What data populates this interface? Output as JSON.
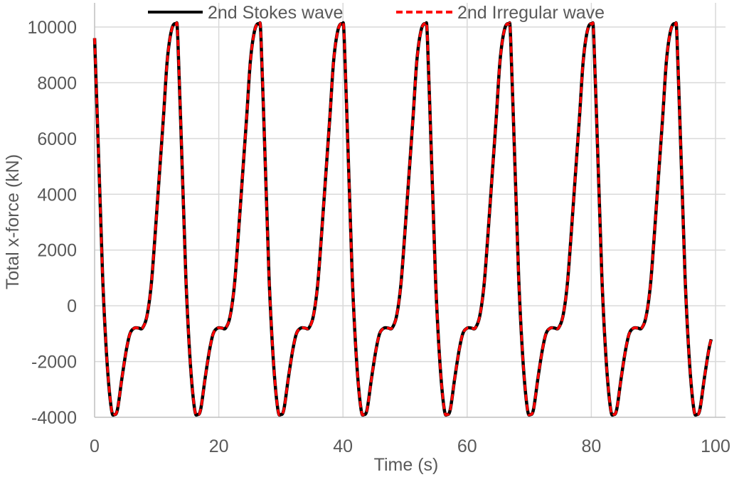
{
  "chart_data": {
    "type": "line",
    "title": "",
    "xlabel": "Time (s)",
    "ylabel": "Total x-force (kN)",
    "xlim": [
      0,
      100
    ],
    "ylim": [
      -4000,
      10000
    ],
    "xticks": [
      0,
      20,
      40,
      60,
      80,
      100
    ],
    "yticks": [
      -4000,
      -2000,
      0,
      2000,
      4000,
      6000,
      8000,
      10000
    ],
    "grid": true,
    "legend_position": "top",
    "period": 13.4,
    "x_end": 99.3,
    "series": [
      {
        "name": "2nd Stokes wave",
        "color": "#000000",
        "style": "solid",
        "profile": [
          [
            0.0,
            9600
          ],
          [
            0.7,
            5000
          ],
          [
            1.3,
            1000
          ],
          [
            2.0,
            -2000
          ],
          [
            2.7,
            -3700
          ],
          [
            3.2,
            -3900
          ],
          [
            3.7,
            -3700
          ],
          [
            4.4,
            -2600
          ],
          [
            5.1,
            -1600
          ],
          [
            5.7,
            -1000
          ],
          [
            6.4,
            -800
          ],
          [
            7.1,
            -800
          ],
          [
            7.7,
            -800
          ],
          [
            8.4,
            -400
          ],
          [
            9.1,
            700
          ],
          [
            9.7,
            2400
          ],
          [
            10.4,
            4600
          ],
          [
            11.1,
            6800
          ],
          [
            11.7,
            8800
          ],
          [
            12.4,
            9900
          ],
          [
            13.1,
            10100
          ],
          [
            13.4,
            9600
          ]
        ]
      },
      {
        "name": "2nd Irregular wave",
        "color": "#ff0000",
        "style": "dashed",
        "profile": [
          [
            0.0,
            9600
          ],
          [
            0.7,
            5000
          ],
          [
            1.3,
            1000
          ],
          [
            2.0,
            -2000
          ],
          [
            2.7,
            -3700
          ],
          [
            3.2,
            -3900
          ],
          [
            3.7,
            -3700
          ],
          [
            4.4,
            -2600
          ],
          [
            5.1,
            -1600
          ],
          [
            5.7,
            -1000
          ],
          [
            6.4,
            -800
          ],
          [
            7.1,
            -800
          ],
          [
            7.7,
            -800
          ],
          [
            8.4,
            -400
          ],
          [
            9.1,
            700
          ],
          [
            9.7,
            2400
          ],
          [
            10.4,
            4600
          ],
          [
            11.1,
            6800
          ],
          [
            11.7,
            8800
          ],
          [
            12.4,
            9900
          ],
          [
            13.1,
            10100
          ],
          [
            13.4,
            9600
          ]
        ]
      }
    ]
  }
}
